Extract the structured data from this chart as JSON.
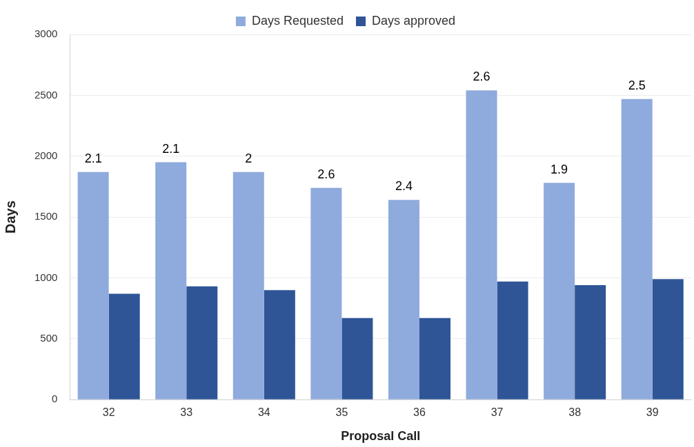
{
  "chart_data": {
    "type": "bar",
    "xlabel": "Proposal Call",
    "ylabel": "Days",
    "categories": [
      "32",
      "33",
      "34",
      "35",
      "36",
      "37",
      "38",
      "39"
    ],
    "series": [
      {
        "name": "Days Requested",
        "color": "#8faadc",
        "values": [
          1870,
          1950,
          1870,
          1740,
          1640,
          2540,
          1780,
          2470
        ]
      },
      {
        "name": "Days approved",
        "color": "#2f5597",
        "values": [
          870,
          930,
          900,
          670,
          670,
          970,
          940,
          990
        ]
      }
    ],
    "ylim": [
      0,
      3000
    ],
    "yticks": [
      0,
      500,
      1000,
      1500,
      2000,
      2500,
      3000
    ],
    "grid": "y",
    "legend": "top",
    "annotations": [
      {
        "text": "2.1",
        "x": "32",
        "y": 1870
      },
      {
        "text": "2.1",
        "x": "33",
        "y": 1950
      },
      {
        "text": "2",
        "x": "34",
        "y": 1870
      },
      {
        "text": "2.6",
        "x": "35",
        "y": 1740
      },
      {
        "text": "2.4",
        "x": "36",
        "y": 1640
      },
      {
        "text": "2.6",
        "x": "37",
        "y": 2540
      },
      {
        "text": "1.9",
        "x": "38",
        "y": 1780
      },
      {
        "text": "2.5",
        "x": "39",
        "y": 2470
      }
    ]
  }
}
